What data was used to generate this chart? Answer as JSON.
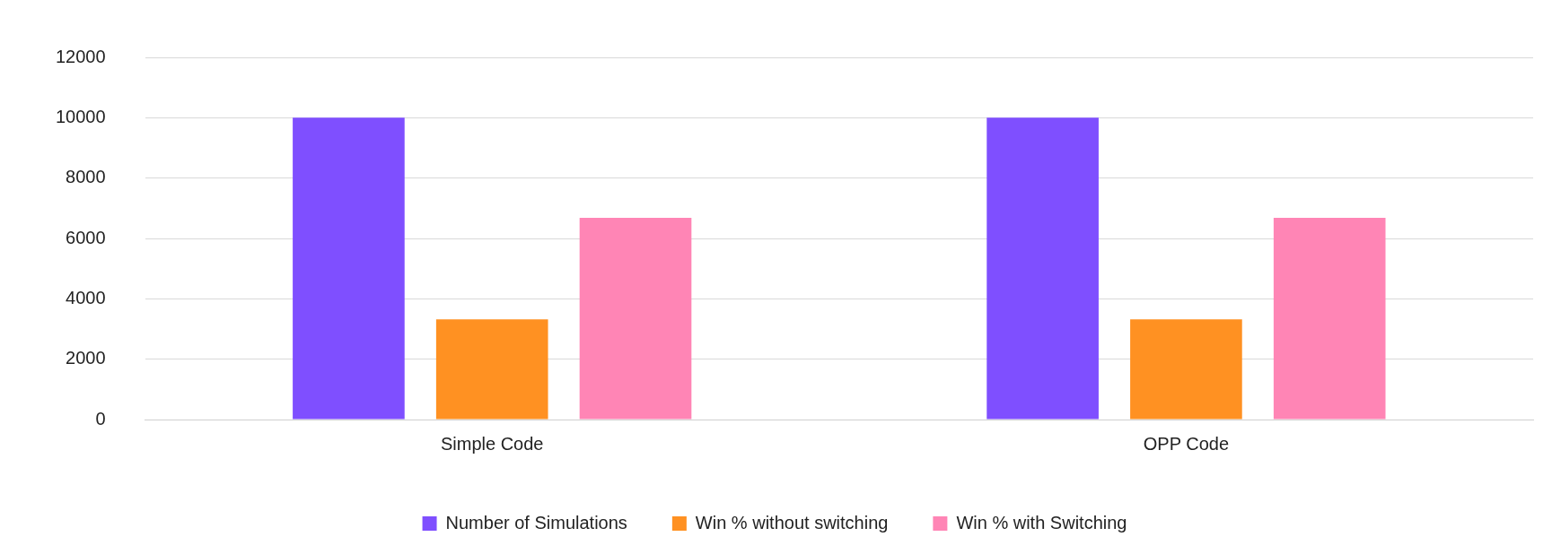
{
  "chart_data": {
    "type": "bar",
    "categories": [
      "Simple Code",
      "OPP Code"
    ],
    "series": [
      {
        "name": "Number of Simulations",
        "color": "#7f4fff",
        "values": [
          10000,
          10000
        ]
      },
      {
        "name": "Win % without switching",
        "color": "#ff9122",
        "values": [
          3320,
          3320
        ]
      },
      {
        "name": "Win % with Switching",
        "color": "#ff85b5",
        "values": [
          6680,
          6680
        ]
      }
    ],
    "ylim": [
      0,
      12000
    ],
    "yticks": [
      0,
      2000,
      4000,
      6000,
      8000,
      10000,
      12000
    ],
    "grid": "y",
    "legend": "bottom"
  }
}
